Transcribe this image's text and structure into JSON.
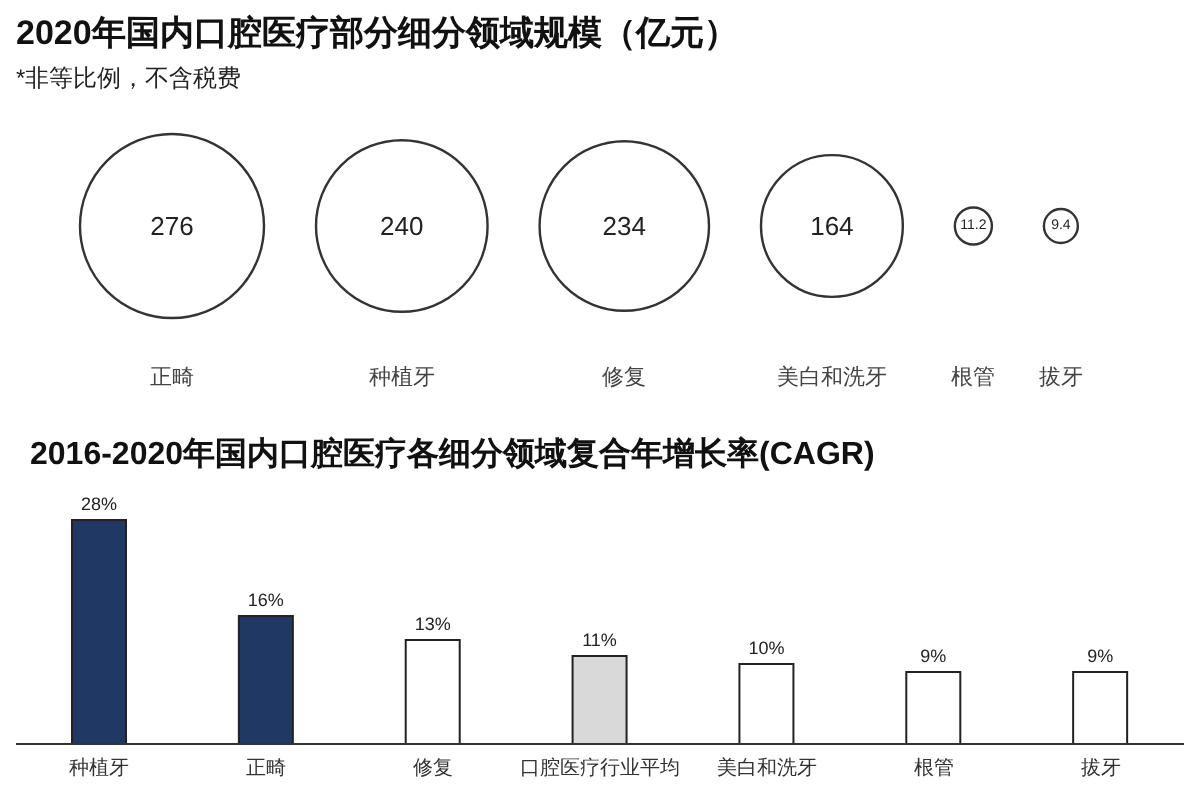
{
  "chart_data": [
    {
      "type": "other",
      "title": "2020年国内口腔医疗部分细分领域规模（亿元）",
      "subtitle": "*非等比例，不含税费",
      "categories": [
        "正畸",
        "种植牙",
        "修复",
        "美白和洗牙",
        "根管",
        "拔牙"
      ],
      "values": [
        276,
        240,
        234,
        164,
        11.2,
        9.4
      ],
      "color": "#333333",
      "data_labels": true
    },
    {
      "type": "bar",
      "title": "2016-2020年国内口腔医疗各细分领域复合年增长率(CAGR)",
      "categories": [
        "种植牙",
        "正畸",
        "修复",
        "口腔医疗行业平均",
        "美白和洗牙",
        "根管",
        "拔牙"
      ],
      "values": [
        28,
        16,
        13,
        11,
        10,
        9,
        9
      ],
      "value_labels": [
        "28%",
        "16%",
        "13%",
        "11%",
        "10%",
        "9%",
        "9%"
      ],
      "colors": [
        "#1f3864",
        "#1f3864",
        "#ffffff",
        "#d9d9d9",
        "#ffffff",
        "#ffffff",
        "#ffffff"
      ],
      "tick_labels": "x"
    }
  ]
}
